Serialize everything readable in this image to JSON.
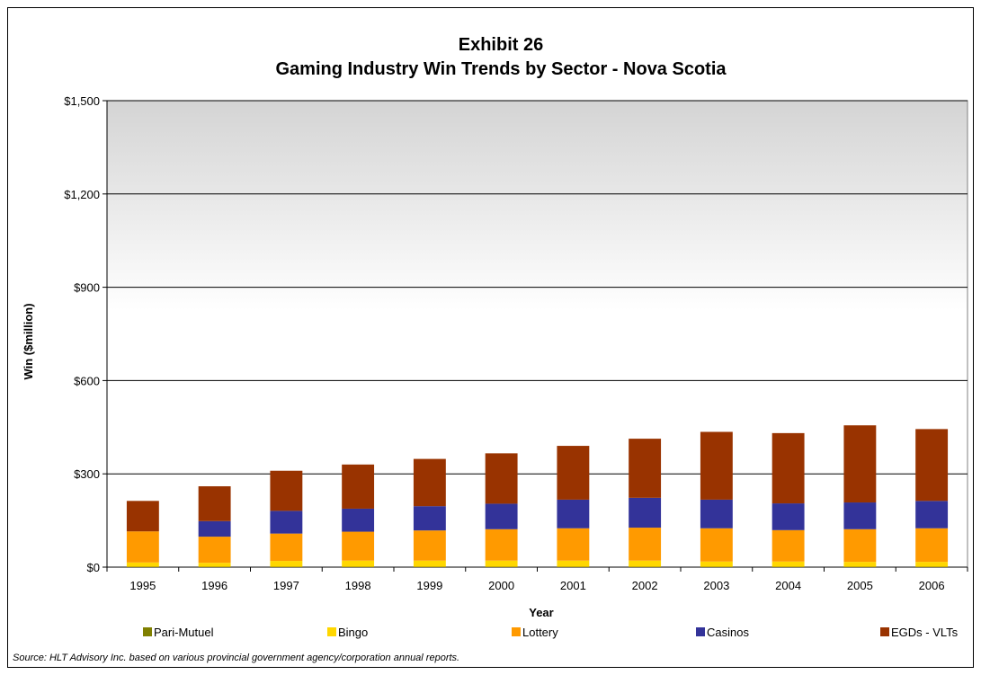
{
  "chart_data": {
    "type": "bar",
    "stacked": true,
    "title": "Exhibit 26",
    "subtitle": "Gaming Industry Win Trends by Sector - Nova Scotia",
    "xlabel": "Year",
    "ylabel": "Win ($million)",
    "ylim": [
      0,
      1500
    ],
    "yticks": [
      0,
      300,
      600,
      900,
      1200,
      1500
    ],
    "ytick_labels": [
      "$0",
      "$300",
      "$600",
      "$900",
      "$1,200",
      "$1,500"
    ],
    "categories": [
      "1995",
      "1996",
      "1997",
      "1998",
      "1999",
      "2000",
      "2001",
      "2002",
      "2003",
      "2004",
      "2005",
      "2006"
    ],
    "grid": true,
    "legend_position": "bottom",
    "series": [
      {
        "name": "Pari-Mutuel",
        "color": "#808000",
        "values": [
          1,
          1,
          1,
          1,
          1,
          1,
          1,
          1,
          1,
          1,
          1,
          1
        ]
      },
      {
        "name": "Bingo",
        "color": "#ffd700",
        "values": [
          14,
          13,
          19,
          20,
          20,
          20,
          20,
          20,
          17,
          17,
          16,
          16
        ]
      },
      {
        "name": "Lottery",
        "color": "#ff9a00",
        "values": [
          100,
          84,
          88,
          93,
          97,
          101,
          104,
          106,
          107,
          101,
          105,
          108
        ]
      },
      {
        "name": "Casinos",
        "color": "#333399",
        "values": [
          0,
          50,
          73,
          74,
          78,
          82,
          92,
          96,
          92,
          86,
          86,
          88
        ]
      },
      {
        "name": "EGDs - VLTs",
        "color": "#993300",
        "values": [
          98,
          112,
          129,
          142,
          152,
          162,
          173,
          190,
          218,
          226,
          248,
          231
        ]
      }
    ]
  },
  "source_note": "Source: HLT Advisory Inc. based on various provincial government agency/corporation annual reports."
}
